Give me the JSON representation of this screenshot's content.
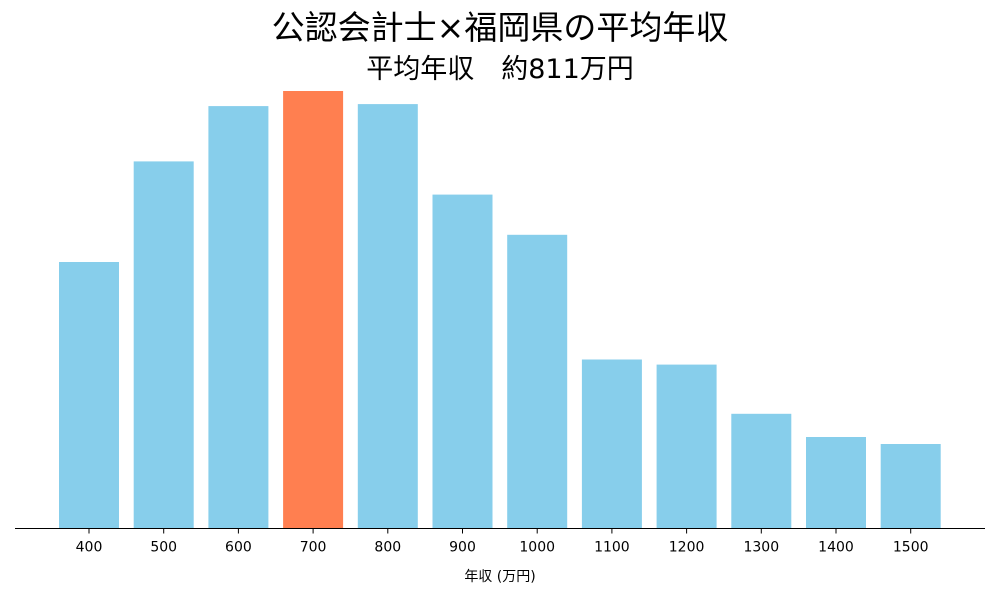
{
  "chart_data": {
    "type": "bar",
    "title": "公認会計士×福岡県の平均年収",
    "subtitle": "平均年収　約811万円",
    "xlabel": "年収 (万円)",
    "ylabel": "",
    "categories": [
      "400",
      "500",
      "600",
      "700",
      "800",
      "900",
      "1000",
      "1100",
      "1200",
      "1300",
      "1400",
      "1500"
    ],
    "values": [
      26.5,
      36.5,
      42.0,
      43.5,
      42.2,
      33.2,
      29.2,
      16.8,
      16.3,
      11.4,
      9.1,
      8.4
    ],
    "highlight_category": "700",
    "bar_color": "#87CEEB",
    "highlight_color": "#FF7F50",
    "axis_color": "#000000",
    "ylim": [
      0,
      43.5
    ],
    "grid": false,
    "legend": "none"
  }
}
